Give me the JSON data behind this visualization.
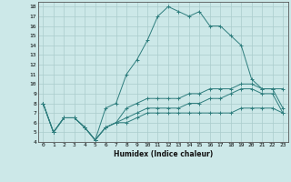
{
  "xlabel": "Humidex (Indice chaleur)",
  "bg_color": "#cce8e8",
  "grid_color": "#aacccc",
  "line_color": "#2e7d7d",
  "xlim": [
    -0.5,
    23.5
  ],
  "ylim": [
    4,
    18.5
  ],
  "xticks": [
    0,
    1,
    2,
    3,
    4,
    5,
    6,
    7,
    8,
    9,
    10,
    11,
    12,
    13,
    14,
    15,
    16,
    17,
    18,
    19,
    20,
    21,
    22,
    23
  ],
  "yticks": [
    4,
    5,
    6,
    7,
    8,
    9,
    10,
    11,
    12,
    13,
    14,
    15,
    16,
    17,
    18
  ],
  "series": [
    [
      8.0,
      5.0,
      6.5,
      6.5,
      5.5,
      4.2,
      7.5,
      8.0,
      11.0,
      12.5,
      14.5,
      17.0,
      18.0,
      17.5,
      17.0,
      17.5,
      16.0,
      16.0,
      15.0,
      14.0,
      10.5,
      9.5,
      9.5,
      9.5
    ],
    [
      8.0,
      5.0,
      6.5,
      6.5,
      5.5,
      4.2,
      5.5,
      6.0,
      7.5,
      8.0,
      8.5,
      8.5,
      8.5,
      8.5,
      9.0,
      9.0,
      9.5,
      9.5,
      9.5,
      10.0,
      10.0,
      9.5,
      9.5,
      7.5
    ],
    [
      8.0,
      5.0,
      6.5,
      6.5,
      5.5,
      4.2,
      5.5,
      6.0,
      6.5,
      7.0,
      7.5,
      7.5,
      7.5,
      7.5,
      8.0,
      8.0,
      8.5,
      8.5,
      9.0,
      9.5,
      9.5,
      9.0,
      9.0,
      7.0
    ],
    [
      8.0,
      5.0,
      6.5,
      6.5,
      5.5,
      4.2,
      5.5,
      6.0,
      6.0,
      6.5,
      7.0,
      7.0,
      7.0,
      7.0,
      7.0,
      7.0,
      7.0,
      7.0,
      7.0,
      7.5,
      7.5,
      7.5,
      7.5,
      7.0
    ]
  ]
}
